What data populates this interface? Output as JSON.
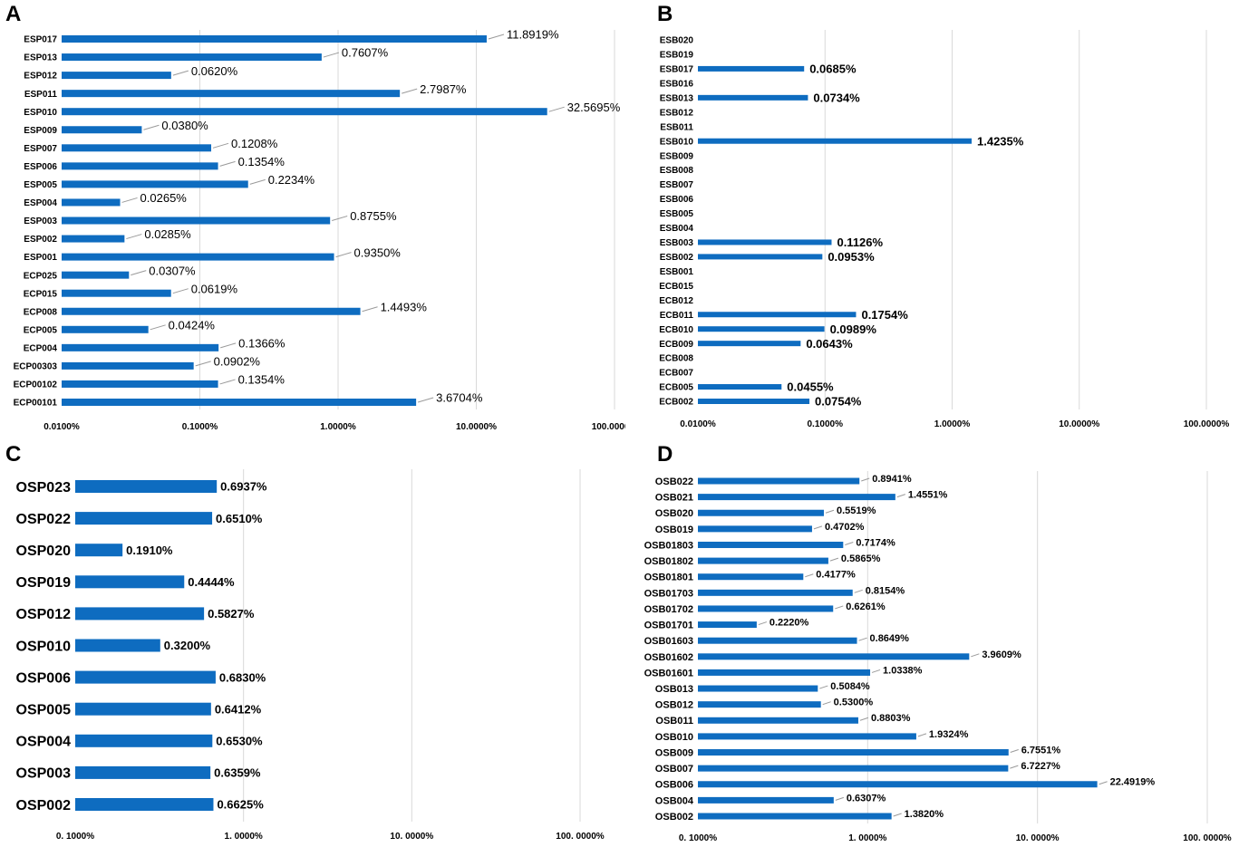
{
  "colors": {
    "bar": "#0e6cc0",
    "grid": "#d9d9d9",
    "leader": "#9a9a9a",
    "text": "#000000"
  },
  "chart_data": [
    {
      "panel": "A",
      "type": "bar",
      "orientation": "horizontal",
      "xscale": "log",
      "xlim": [
        0.01,
        100
      ],
      "xticks": [
        0.01,
        0.1,
        1,
        10,
        100
      ],
      "xtick_labels": [
        "0.0100%",
        "0.1000%",
        "1.0000%",
        "10.0000%",
        "100.0000%"
      ],
      "categories": [
        "ESP017",
        "ESP013",
        "ESP012",
        "ESP011",
        "ESP010",
        "ESP009",
        "ESP007",
        "ESP006",
        "ESP005",
        "ESP004",
        "ESP003",
        "ESP002",
        "ESP001",
        "ECP025",
        "ECP015",
        "ECP008",
        "ECP005",
        "ECP004",
        "ECP00303",
        "ECP00102",
        "ECP00101"
      ],
      "values": [
        11.8919,
        0.7607,
        0.062,
        2.7987,
        32.5695,
        0.038,
        0.1208,
        0.1354,
        0.2234,
        0.0265,
        0.8755,
        0.0285,
        0.935,
        0.0307,
        0.0619,
        1.4493,
        0.0424,
        0.1366,
        0.0902,
        0.1354,
        3.6704
      ],
      "labels": [
        "11.8919%",
        "0.7607%",
        "0.0620%",
        "2.7987%",
        "32.5695%",
        "0.0380%",
        "0.1208%",
        "0.1354%",
        "0.2234%",
        "0.0265%",
        "0.8755%",
        "0.0285%",
        "0.9350%",
        "0.0307%",
        "0.0619%",
        "1.4493%",
        "0.0424%",
        "0.1366%",
        "0.0902%",
        "0.1354%",
        "3.6704%"
      ]
    },
    {
      "panel": "B",
      "type": "bar",
      "orientation": "horizontal",
      "xscale": "log",
      "xlim": [
        0.01,
        100
      ],
      "xticks": [
        0.01,
        0.1,
        1,
        10,
        100
      ],
      "xtick_labels": [
        "0.0100%",
        "0.1000%",
        "1.0000%",
        "10.0000%",
        "100.0000%"
      ],
      "categories": [
        "ESB020",
        "ESB019",
        "ESB017",
        "ESB016",
        "ESB013",
        "ESB012",
        "ESB011",
        "ESB010",
        "ESB009",
        "ESB008",
        "ESB007",
        "ESB006",
        "ESB005",
        "ESB004",
        "ESB003",
        "ESB002",
        "ESB001",
        "ECB015",
        "ECB012",
        "ECB011",
        "ECB010",
        "ECB009",
        "ECB008",
        "ECB007",
        "ECB005",
        "ECB002"
      ],
      "values": [
        null,
        null,
        0.0685,
        null,
        0.0734,
        null,
        null,
        1.4235,
        null,
        null,
        null,
        null,
        null,
        null,
        0.1126,
        0.0953,
        null,
        null,
        null,
        0.1754,
        0.0989,
        0.0643,
        null,
        null,
        0.0455,
        0.0754
      ],
      "labels": [
        "",
        "",
        "0.0685%",
        "",
        "0.0734%",
        "",
        "",
        "1.4235%",
        "",
        "",
        "",
        "",
        "",
        "",
        "0.1126%",
        "0.0953%",
        "",
        "",
        "",
        "0.1754%",
        "0.0989%",
        "0.0643%",
        "",
        "",
        "0.0455%",
        "0.0754%"
      ]
    },
    {
      "panel": "C",
      "type": "bar",
      "orientation": "horizontal",
      "xscale": "log",
      "xlim": [
        0.1,
        100
      ],
      "xticks": [
        0.1,
        1,
        10,
        100
      ],
      "xtick_labels": [
        "0. 1000%",
        "1. 0000%",
        "10. 0000%",
        "100. 0000%"
      ],
      "categories": [
        "OSP023",
        "OSP022",
        "OSP020",
        "OSP019",
        "OSP012",
        "OSP010",
        "OSP006",
        "OSP005",
        "OSP004",
        "OSP003",
        "OSP002"
      ],
      "values": [
        0.6937,
        0.651,
        0.191,
        0.4444,
        0.5827,
        0.32,
        0.683,
        0.6412,
        0.653,
        0.6359,
        0.6625
      ],
      "labels": [
        "0.6937%",
        "0.6510%",
        "0.1910%",
        "0.4444%",
        "0.5827%",
        "0.3200%",
        "0.6830%",
        "0.6412%",
        "0.6530%",
        "0.6359%",
        "0.6625%"
      ]
    },
    {
      "panel": "D",
      "type": "bar",
      "orientation": "horizontal",
      "xscale": "log",
      "xlim": [
        0.1,
        100
      ],
      "xticks": [
        0.1,
        1,
        10,
        100
      ],
      "xtick_labels": [
        "0. 1000%",
        "1. 0000%",
        "10. 0000%",
        "100. 0000%"
      ],
      "categories": [
        "OSB022",
        "OSB021",
        "OSB020",
        "OSB019",
        "OSB01803",
        "OSB01802",
        "OSB01801",
        "OSB01703",
        "OSB01702",
        "OSB01701",
        "OSB01603",
        "OSB01602",
        "OSB01601",
        "OSB013",
        "OSB012",
        "OSB011",
        "OSB010",
        "OSB009",
        "OSB007",
        "OSB006",
        "OSB004",
        "OSB002"
      ],
      "values": [
        0.8941,
        1.4551,
        0.5519,
        0.4702,
        0.7174,
        0.5865,
        0.4177,
        0.8154,
        0.6261,
        0.222,
        0.8649,
        3.9609,
        1.0338,
        0.5084,
        0.53,
        0.8803,
        1.9324,
        6.7551,
        6.7227,
        22.4919,
        0.6307,
        1.382
      ],
      "labels": [
        "0.8941%",
        "1.4551%",
        "0.5519%",
        "0.4702%",
        "0.7174%",
        "0.5865%",
        "0.4177%",
        "0.8154%",
        "0.6261%",
        "0.2220%",
        "0.8649%",
        "3.9609%",
        "1.0338%",
        "0.5084%",
        "0.5300%",
        "0.8803%",
        "1.9324%",
        "6.7551%",
        "6.7227%",
        "22.4919%",
        "0.6307%",
        "1.3820%"
      ]
    }
  ]
}
